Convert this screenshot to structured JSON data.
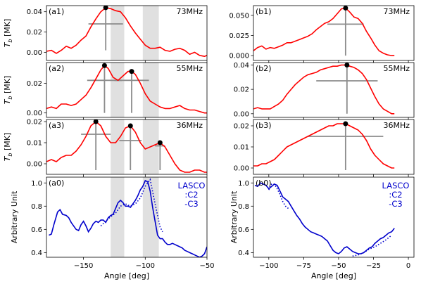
{
  "chart_data": [
    {
      "id": "a1",
      "type": "line",
      "panel_label": "(a1)",
      "freq_label": "73MHz",
      "xlim": [
        -180,
        -50
      ],
      "ylim": [
        -0.008,
        0.046
      ],
      "yticks": [
        0.0,
        0.02,
        0.04
      ],
      "ytick_labels": [
        "0.00",
        "0.02",
        "0.04"
      ],
      "ylabel": "T_b [MK]",
      "shaded": [
        [
          -128,
          -117
        ],
        [
          -102,
          -89
        ]
      ],
      "x": [
        -180,
        -176,
        -172,
        -168,
        -164,
        -160,
        -156,
        -152,
        -148,
        -144,
        -140,
        -136,
        -132,
        -128,
        -124,
        -120,
        -116,
        -112,
        -108,
        -104,
        -100,
        -96,
        -92,
        -88,
        -84,
        -80,
        -76,
        -72,
        -68,
        -64,
        -60,
        -56,
        -52,
        -50
      ],
      "y": [
        0.001,
        0.002,
        -0.001,
        0.002,
        0.006,
        0.004,
        0.007,
        0.012,
        0.016,
        0.025,
        0.033,
        0.04,
        0.044,
        0.043,
        0.041,
        0.04,
        0.034,
        0.026,
        0.019,
        0.013,
        0.007,
        0.004,
        0.004,
        0.005,
        0.002,
        0.001,
        0.003,
        0.004,
        0.002,
        -0.002,
        0.0,
        -0.003,
        -0.004,
        -0.003
      ],
      "peaks": [
        {
          "x": -132,
          "y": 0.044,
          "hw": 14,
          "hh": 0.028,
          "ybot": 0.002
        }
      ]
    },
    {
      "id": "a2",
      "type": "line",
      "panel_label": "(a2)",
      "freq_label": "55MHz",
      "xlim": [
        -180,
        -50
      ],
      "ylim": [
        -0.003,
        0.034
      ],
      "yticks": [
        0.0,
        0.02
      ],
      "ytick_labels": [
        "0.00",
        "0.02"
      ],
      "ylabel": "T_b [MK]",
      "shaded": [
        [
          -128,
          -117
        ],
        [
          -102,
          -89
        ]
      ],
      "x": [
        -180,
        -176,
        -172,
        -168,
        -164,
        -160,
        -156,
        -152,
        -148,
        -144,
        -140,
        -136,
        -133,
        -130,
        -126,
        -122,
        -118,
        -114,
        -111,
        -108,
        -104,
        -100,
        -96,
        -92,
        -88,
        -84,
        -80,
        -76,
        -72,
        -68,
        -64,
        -60,
        -56,
        -52,
        -50
      ],
      "y": [
        0.003,
        0.004,
        0.003,
        0.006,
        0.006,
        0.005,
        0.006,
        0.009,
        0.012,
        0.017,
        0.023,
        0.029,
        0.032,
        0.03,
        0.024,
        0.022,
        0.025,
        0.028,
        0.028,
        0.026,
        0.02,
        0.013,
        0.008,
        0.006,
        0.004,
        0.003,
        0.003,
        0.004,
        0.005,
        0.003,
        0.002,
        0.002,
        0.001,
        0.0,
        0.0
      ],
      "peaks": [
        {
          "x": -133,
          "y": 0.032,
          "hw": 14,
          "hh": 0.022,
          "ybot": 0.0
        },
        {
          "x": -111,
          "y": 0.028,
          "hw": 14,
          "hh": 0.022,
          "ybot": 0.0
        }
      ]
    },
    {
      "id": "a3",
      "type": "line",
      "panel_label": "(a3)",
      "freq_label": "36MHz",
      "xlim": [
        -180,
        -50
      ],
      "ylim": [
        -0.005,
        0.021
      ],
      "yticks": [
        0.0,
        0.01,
        0.02
      ],
      "ytick_labels": [
        "0.00",
        "0.01",
        "0.02"
      ],
      "ylabel": "T_b [MK]",
      "shaded": [
        [
          -128,
          -117
        ],
        [
          -102,
          -89
        ]
      ],
      "x": [
        -180,
        -176,
        -172,
        -168,
        -164,
        -160,
        -156,
        -152,
        -148,
        -144,
        -140,
        -136,
        -132,
        -128,
        -124,
        -120,
        -116,
        -112,
        -108,
        -104,
        -100,
        -96,
        -92,
        -88,
        -84,
        -80,
        -76,
        -72,
        -68,
        -64,
        -60,
        -56,
        -52,
        -50
      ],
      "y": [
        0.001,
        0.002,
        0.001,
        0.003,
        0.004,
        0.004,
        0.006,
        0.009,
        0.013,
        0.018,
        0.02,
        0.018,
        0.013,
        0.01,
        0.01,
        0.013,
        0.017,
        0.018,
        0.015,
        0.01,
        0.007,
        0.008,
        0.009,
        0.01,
        0.008,
        0.004,
        0.0,
        -0.003,
        -0.004,
        -0.004,
        -0.003,
        -0.003,
        -0.004,
        -0.004
      ],
      "peaks": [
        {
          "x": -140,
          "y": 0.02,
          "hw": 12,
          "hh": 0.014,
          "ybot": -0.003
        },
        {
          "x": -112,
          "y": 0.018,
          "hw": 9,
          "hh": 0.011,
          "ybot": -0.003
        },
        {
          "x": -88,
          "y": 0.01,
          "hw": 4,
          "hh": 0.0085,
          "ybot": -0.003
        }
      ]
    },
    {
      "id": "a0",
      "type": "line",
      "panel_label": "(a0)",
      "xlim": [
        -180,
        -50
      ],
      "ylim": [
        0.36,
        1.05
      ],
      "yticks": [
        0.4,
        0.6,
        0.8,
        1.0
      ],
      "ytick_labels": [
        "0.4",
        "0.6",
        "0.8",
        "1.0"
      ],
      "xticks": [
        -150,
        -100,
        -50
      ],
      "xtick_labels": [
        "−150",
        "−100",
        "−50"
      ],
      "xlabel": "Angle [deg]",
      "ylabel": "Arbitrary Unit",
      "legend": [
        "LASCO",
        ":C2",
        "-C3"
      ],
      "shaded": [
        [
          -128,
          -117
        ],
        [
          -102,
          -89
        ]
      ],
      "series": [
        {
          "name": "-C3",
          "x": [
            -178,
            -176,
            -174,
            -171,
            -169,
            -167,
            -164,
            -162,
            -160,
            -158,
            -156,
            -154,
            -152,
            -150,
            -148,
            -146,
            -144,
            -142,
            -140,
            -138,
            -136,
            -134,
            -132,
            -130,
            -128,
            -126,
            -124,
            -122,
            -120,
            -118,
            -116,
            -114,
            -112,
            -110,
            -108,
            -106,
            -104,
            -102,
            -100,
            -98,
            -96,
            -94,
            -92,
            -90,
            -88,
            -86,
            -84,
            -82,
            -80,
            -78,
            -76,
            -74,
            -72,
            -70,
            -68,
            -66,
            -64,
            -62,
            -60,
            -58,
            -56,
            -54,
            -52,
            -50
          ],
          "y": [
            0.55,
            0.56,
            0.64,
            0.75,
            0.77,
            0.73,
            0.72,
            0.7,
            0.66,
            0.63,
            0.6,
            0.59,
            0.64,
            0.67,
            0.63,
            0.58,
            0.61,
            0.65,
            0.67,
            0.66,
            0.68,
            0.68,
            0.66,
            0.7,
            0.72,
            0.73,
            0.78,
            0.83,
            0.85,
            0.83,
            0.8,
            0.8,
            0.79,
            0.82,
            0.85,
            0.89,
            0.94,
            0.97,
            1.02,
            1.01,
            0.93,
            0.79,
            0.67,
            0.55,
            0.52,
            0.52,
            0.49,
            0.47,
            0.47,
            0.48,
            0.47,
            0.46,
            0.45,
            0.44,
            0.42,
            0.41,
            0.4,
            0.39,
            0.38,
            0.37,
            0.36,
            0.37,
            0.39,
            0.45
          ]
        },
        {
          "name": ":C2",
          "x": [
            -136,
            -132,
            -128,
            -124,
            -120,
            -116,
            -112,
            -108,
            -104,
            -100,
            -96,
            -92,
            -88,
            -86
          ],
          "y": [
            0.63,
            0.67,
            0.71,
            0.74,
            0.8,
            0.82,
            0.8,
            0.82,
            0.87,
            0.97,
            1.03,
            0.82,
            0.62,
            0.58
          ]
        }
      ]
    },
    {
      "id": "b1",
      "type": "line",
      "panel_label": "(b1)",
      "freq_label": "73MHz",
      "xlim": [
        -111,
        4
      ],
      "ylim": [
        -0.006,
        0.062
      ],
      "yticks": [
        0.0,
        0.025,
        0.05
      ],
      "ytick_labels": [
        "0.000",
        "0.025",
        "0.050"
      ],
      "x": [
        -111,
        -108,
        -105,
        -102,
        -99,
        -96,
        -93,
        -90,
        -87,
        -84,
        -81,
        -78,
        -75,
        -72,
        -69,
        -66,
        -63,
        -60,
        -57,
        -54,
        -51,
        -48,
        -45,
        -42,
        -39,
        -36,
        -33,
        -30,
        -27,
        -24,
        -21,
        -18,
        -15,
        -12,
        -10
      ],
      "y": [
        0.006,
        0.01,
        0.012,
        0.008,
        0.01,
        0.009,
        0.011,
        0.013,
        0.016,
        0.016,
        0.018,
        0.02,
        0.022,
        0.024,
        0.027,
        0.032,
        0.036,
        0.04,
        0.042,
        0.046,
        0.052,
        0.058,
        0.059,
        0.054,
        0.048,
        0.046,
        0.04,
        0.03,
        0.022,
        0.013,
        0.006,
        0.003,
        0.001,
        0.0,
        0.0
      ],
      "peaks": [
        {
          "x": -45,
          "y": 0.059,
          "hw": 13,
          "hh": 0.039,
          "ybot": 0.0
        }
      ]
    },
    {
      "id": "b2",
      "type": "line",
      "panel_label": "(b2)",
      "freq_label": "55MHz",
      "xlim": [
        -111,
        4
      ],
      "ylim": [
        -0.003,
        0.042
      ],
      "yticks": [
        0.0,
        0.02,
        0.04
      ],
      "ytick_labels": [
        "0.00",
        "0.02",
        "0.04"
      ],
      "x": [
        -111,
        -108,
        -105,
        -102,
        -99,
        -96,
        -93,
        -90,
        -87,
        -84,
        -81,
        -78,
        -75,
        -72,
        -69,
        -66,
        -63,
        -60,
        -57,
        -54,
        -51,
        -48,
        -45,
        -42,
        -39,
        -36,
        -33,
        -30,
        -27,
        -24,
        -21,
        -18,
        -15,
        -12,
        -10
      ],
      "y": [
        0.004,
        0.005,
        0.004,
        0.004,
        0.004,
        0.006,
        0.008,
        0.011,
        0.016,
        0.02,
        0.024,
        0.027,
        0.03,
        0.032,
        0.033,
        0.034,
        0.036,
        0.037,
        0.038,
        0.039,
        0.039,
        0.04,
        0.04,
        0.039,
        0.038,
        0.036,
        0.033,
        0.028,
        0.021,
        0.014,
        0.008,
        0.004,
        0.002,
        0.0,
        0.0
      ],
      "peaks": [
        {
          "x": -44,
          "y": 0.04,
          "hw": 22,
          "hh": 0.027,
          "ybot": 0.0
        }
      ]
    },
    {
      "id": "b3",
      "type": "line",
      "panel_label": "(b3)",
      "freq_label": "36MHz",
      "xlim": [
        -111,
        4
      ],
      "ylim": [
        -0.003,
        0.023
      ],
      "yticks": [
        0.0,
        0.01,
        0.02
      ],
      "ytick_labels": [
        "0.00",
        "0.01",
        "0.02"
      ],
      "x": [
        -111,
        -108,
        -105,
        -102,
        -99,
        -96,
        -93,
        -90,
        -87,
        -84,
        -81,
        -78,
        -75,
        -72,
        -69,
        -66,
        -63,
        -60,
        -57,
        -54,
        -51,
        -48,
        -45,
        -42,
        -39,
        -36,
        -33,
        -30,
        -27,
        -24,
        -21,
        -18,
        -15,
        -12,
        -10
      ],
      "y": [
        0.001,
        0.001,
        0.002,
        0.002,
        0.003,
        0.004,
        0.006,
        0.008,
        0.01,
        0.011,
        0.012,
        0.013,
        0.014,
        0.015,
        0.016,
        0.017,
        0.018,
        0.019,
        0.02,
        0.02,
        0.021,
        0.021,
        0.021,
        0.02,
        0.019,
        0.018,
        0.016,
        0.013,
        0.009,
        0.006,
        0.004,
        0.002,
        0.001,
        0.0,
        0.0
      ],
      "peaks": [
        {
          "x": -45,
          "y": 0.021,
          "hw": 27,
          "hh": 0.015,
          "ybot": -0.001
        }
      ]
    },
    {
      "id": "b0",
      "type": "line",
      "panel_label": "(b0)",
      "xlim": [
        -111,
        4
      ],
      "ylim": [
        0.36,
        1.05
      ],
      "yticks": [
        0.4,
        0.6,
        0.8,
        1.0
      ],
      "ytick_labels": [
        "0.4",
        "0.6",
        "0.8",
        "1.0"
      ],
      "xticks": [
        -100,
        -75,
        -50,
        -25,
        0
      ],
      "xtick_labels": [
        "−100",
        "−75",
        "−50",
        "−25",
        "0"
      ],
      "xlabel": "Angle [deg]",
      "ylabel": "Arbitrary Unit",
      "legend": [
        "LASCO",
        ":C2",
        "-C3"
      ],
      "series": [
        {
          "name": "-C3",
          "x": [
            -110,
            -108,
            -106,
            -104,
            -102,
            -100,
            -98,
            -96,
            -94,
            -92,
            -90,
            -88,
            -86,
            -84,
            -82,
            -80,
            -78,
            -76,
            -74,
            -72,
            -70,
            -68,
            -66,
            -64,
            -62,
            -60,
            -58,
            -56,
            -54,
            -52,
            -50,
            -48,
            -46,
            -44,
            -42,
            -40,
            -38,
            -36,
            -34,
            -32,
            -30,
            -28,
            -26,
            -24,
            -22,
            -20,
            -18,
            -16,
            -14,
            -12,
            -10
          ],
          "y": [
            0.98,
            0.97,
            1.0,
            0.99,
            0.98,
            0.95,
            0.97,
            0.99,
            0.98,
            0.93,
            0.88,
            0.86,
            0.84,
            0.8,
            0.76,
            0.72,
            0.69,
            0.65,
            0.62,
            0.6,
            0.58,
            0.57,
            0.56,
            0.55,
            0.54,
            0.52,
            0.5,
            0.46,
            0.42,
            0.4,
            0.39,
            0.41,
            0.44,
            0.45,
            0.43,
            0.41,
            0.4,
            0.39,
            0.39,
            0.4,
            0.42,
            0.44,
            0.45,
            0.48,
            0.5,
            0.52,
            0.53,
            0.55,
            0.57,
            0.58,
            0.61
          ]
        },
        {
          "name": ":C2",
          "x": [
            -100,
            -98,
            -96,
            -94,
            -92,
            -90,
            -88,
            -86,
            -40,
            -36,
            -32,
            -28,
            -24,
            -20,
            -16,
            -12
          ],
          "y": [
            0.94,
            0.99,
            0.99,
            0.95,
            0.9,
            0.84,
            0.8,
            0.78,
            0.37,
            0.38,
            0.4,
            0.43,
            0.45,
            0.48,
            0.51,
            0.55
          ]
        }
      ]
    }
  ]
}
